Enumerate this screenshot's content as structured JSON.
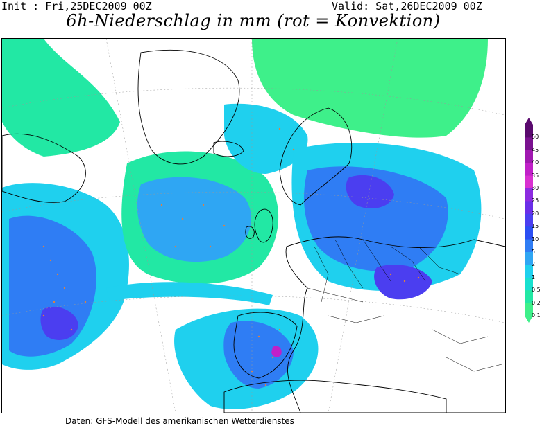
{
  "header": {
    "init": "Init : Fri,25DEC2009 00Z",
    "valid": "Valid: Sat,26DEC2009 00Z",
    "title": "6h-Niederschlag in mm (rot = Konvektion)"
  },
  "footer": "Daten: GFS-Modell des amerikanischen Wetterdienstes",
  "legend": {
    "levels": [
      "50",
      "45",
      "40",
      "35",
      "30",
      "25",
      "20",
      "15",
      "10",
      "5",
      "2",
      "1",
      "0.5",
      "0.2",
      "0.1"
    ],
    "colors": [
      "#5a0a6e",
      "#7a128f",
      "#a018b0",
      "#c020c8",
      "#d830d0",
      "#8c2be0",
      "#6a2ee8",
      "#4b3ef0",
      "#2b4ff3",
      "#2f7df4",
      "#2fa6f3",
      "#1fd0ee",
      "#18e0d0",
      "#22e8a4",
      "#3ef08a"
    ],
    "convection_color": "#e08040"
  }
}
